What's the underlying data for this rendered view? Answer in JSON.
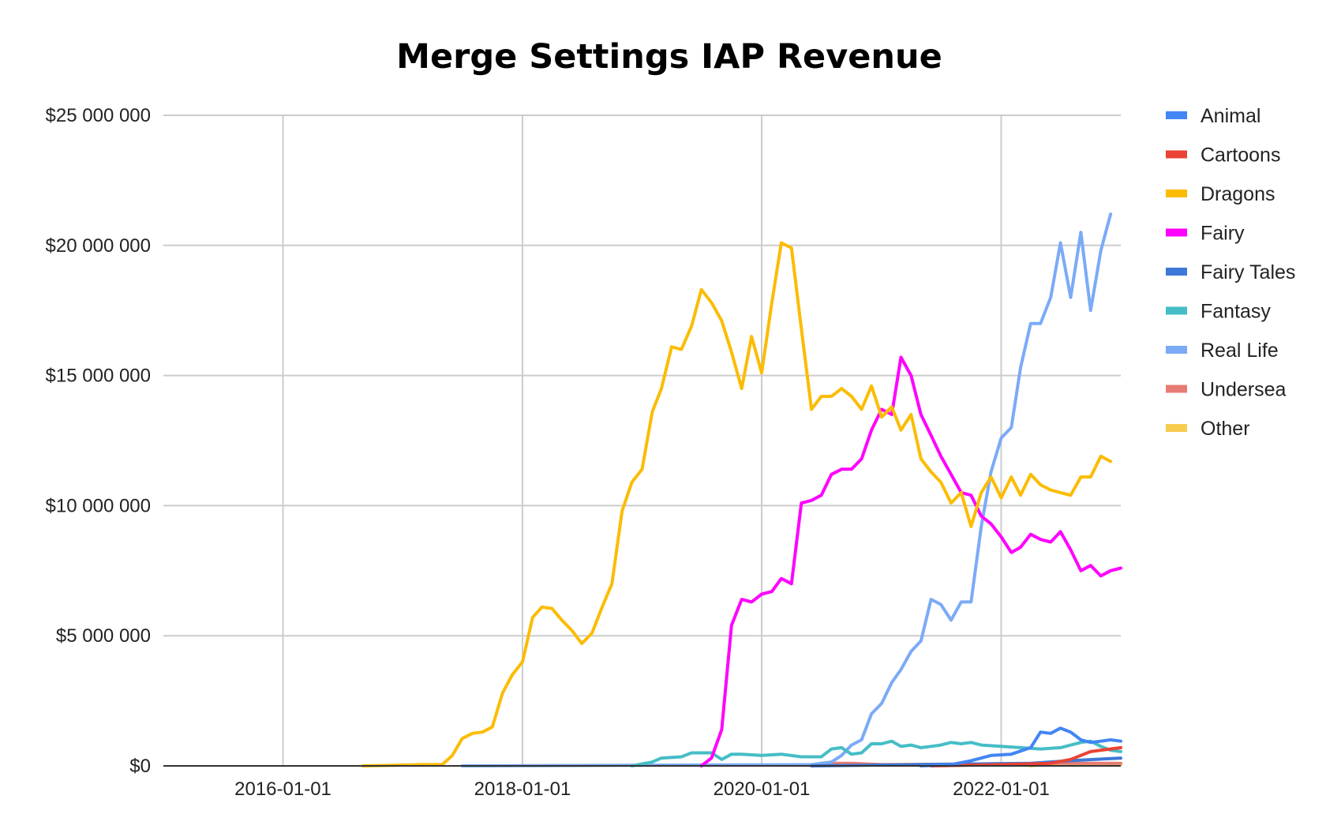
{
  "chart_data": {
    "type": "line",
    "title": "Merge Settings IAP Revenue",
    "xlabel": "",
    "ylabel": "",
    "ylim": [
      0,
      25000000
    ],
    "xlim": [
      "2015-01-01",
      "2023-01-01"
    ],
    "x_ticks": [
      "2016-01-01",
      "2018-01-01",
      "2020-01-01",
      "2022-01-01"
    ],
    "y_ticks": [
      {
        "value": 0,
        "label": "$0"
      },
      {
        "value": 5000000,
        "label": "$5 000 000"
      },
      {
        "value": 10000000,
        "label": "$10 000 000"
      },
      {
        "value": 15000000,
        "label": "$15 000 000"
      },
      {
        "value": 20000000,
        "label": "$20 000 000"
      },
      {
        "value": 25000000,
        "label": "$25 000 000"
      }
    ],
    "grid": true,
    "legend_position": "right",
    "series": [
      {
        "name": "Animal",
        "color": "#4285f4",
        "points": [
          [
            "2021-05-01",
            0
          ],
          [
            "2021-08-01",
            50000
          ],
          [
            "2021-10-01",
            200000
          ],
          [
            "2021-12-01",
            400000
          ],
          [
            "2022-02-01",
            450000
          ],
          [
            "2022-04-01",
            700000
          ],
          [
            "2022-05-01",
            1300000
          ],
          [
            "2022-06-01",
            1250000
          ],
          [
            "2022-07-01",
            1450000
          ],
          [
            "2022-08-01",
            1300000
          ],
          [
            "2022-09-01",
            1000000
          ],
          [
            "2022-10-01",
            900000
          ],
          [
            "2022-11-01",
            950000
          ],
          [
            "2022-12-01",
            1000000
          ],
          [
            "2023-01-01",
            950000
          ]
        ]
      },
      {
        "name": "Cartoons",
        "color": "#ea4335",
        "points": [
          [
            "2021-06-01",
            0
          ],
          [
            "2022-01-01",
            50000
          ],
          [
            "2022-06-01",
            100000
          ],
          [
            "2022-08-01",
            250000
          ],
          [
            "2022-10-01",
            550000
          ],
          [
            "2022-12-01",
            650000
          ],
          [
            "2023-01-01",
            700000
          ]
        ]
      },
      {
        "name": "Dragons",
        "color": "#fbbc04",
        "points": [
          [
            "2016-09-01",
            0
          ],
          [
            "2016-12-01",
            20000
          ],
          [
            "2017-03-01",
            50000
          ],
          [
            "2017-05-01",
            50000
          ],
          [
            "2017-06-01",
            400000
          ],
          [
            "2017-07-01",
            1050000
          ],
          [
            "2017-08-01",
            1250000
          ],
          [
            "2017-09-01",
            1300000
          ],
          [
            "2017-10-01",
            1500000
          ],
          [
            "2017-11-01",
            2800000
          ],
          [
            "2017-12-01",
            3500000
          ],
          [
            "2018-01-01",
            4000000
          ],
          [
            "2018-02-01",
            5700000
          ],
          [
            "2018-03-01",
            6100000
          ],
          [
            "2018-04-01",
            6050000
          ],
          [
            "2018-05-01",
            5600000
          ],
          [
            "2018-06-01",
            5200000
          ],
          [
            "2018-07-01",
            4700000
          ],
          [
            "2018-08-01",
            5100000
          ],
          [
            "2018-09-01",
            6100000
          ],
          [
            "2018-10-01",
            7000000
          ],
          [
            "2018-11-01",
            9800000
          ],
          [
            "2018-12-01",
            10900000
          ],
          [
            "2019-01-01",
            11400000
          ],
          [
            "2019-02-01",
            13600000
          ],
          [
            "2019-03-01",
            14500000
          ],
          [
            "2019-04-01",
            16100000
          ],
          [
            "2019-05-01",
            16000000
          ],
          [
            "2019-06-01",
            16900000
          ],
          [
            "2019-07-01",
            18300000
          ],
          [
            "2019-08-01",
            17800000
          ],
          [
            "2019-09-01",
            17100000
          ],
          [
            "2019-10-01",
            15900000
          ],
          [
            "2019-11-01",
            14500000
          ],
          [
            "2019-12-01",
            16500000
          ],
          [
            "2020-01-01",
            15100000
          ],
          [
            "2020-02-01",
            17800000
          ],
          [
            "2020-03-01",
            20100000
          ],
          [
            "2020-04-01",
            19900000
          ],
          [
            "2020-05-01",
            16800000
          ],
          [
            "2020-06-01",
            13700000
          ],
          [
            "2020-07-01",
            14200000
          ],
          [
            "2020-08-01",
            14200000
          ],
          [
            "2020-09-01",
            14500000
          ],
          [
            "2020-10-01",
            14200000
          ],
          [
            "2020-11-01",
            13700000
          ],
          [
            "2020-12-01",
            14600000
          ],
          [
            "2021-01-01",
            13400000
          ],
          [
            "2021-02-01",
            13800000
          ],
          [
            "2021-03-01",
            12900000
          ],
          [
            "2021-04-01",
            13500000
          ],
          [
            "2021-05-01",
            11800000
          ],
          [
            "2021-06-01",
            11300000
          ],
          [
            "2021-07-01",
            10900000
          ],
          [
            "2021-08-01",
            10100000
          ],
          [
            "2021-09-01",
            10500000
          ],
          [
            "2021-10-01",
            9200000
          ],
          [
            "2021-11-01",
            10500000
          ],
          [
            "2021-12-01",
            11100000
          ],
          [
            "2022-01-01",
            10300000
          ],
          [
            "2022-02-01",
            11100000
          ],
          [
            "2022-03-01",
            10400000
          ],
          [
            "2022-04-01",
            11200000
          ],
          [
            "2022-05-01",
            10800000
          ],
          [
            "2022-06-01",
            10600000
          ],
          [
            "2022-07-01",
            10500000
          ],
          [
            "2022-08-01",
            10400000
          ],
          [
            "2022-09-01",
            11100000
          ],
          [
            "2022-10-01",
            11100000
          ],
          [
            "2022-11-01",
            11900000
          ],
          [
            "2022-12-01",
            11700000
          ]
        ]
      },
      {
        "name": "Fairy",
        "color": "#ff00ff",
        "points": [
          [
            "2019-07-01",
            0
          ],
          [
            "2019-08-01",
            300000
          ],
          [
            "2019-09-01",
            1400000
          ],
          [
            "2019-10-01",
            5400000
          ],
          [
            "2019-11-01",
            6400000
          ],
          [
            "2019-12-01",
            6300000
          ],
          [
            "2020-01-01",
            6600000
          ],
          [
            "2020-02-01",
            6700000
          ],
          [
            "2020-03-01",
            7200000
          ],
          [
            "2020-04-01",
            7000000
          ],
          [
            "2020-05-01",
            10100000
          ],
          [
            "2020-06-01",
            10200000
          ],
          [
            "2020-07-01",
            10400000
          ],
          [
            "2020-08-01",
            11200000
          ],
          [
            "2020-09-01",
            11400000
          ],
          [
            "2020-10-01",
            11400000
          ],
          [
            "2020-11-01",
            11800000
          ],
          [
            "2020-12-01",
            12900000
          ],
          [
            "2021-01-01",
            13700000
          ],
          [
            "2021-02-01",
            13500000
          ],
          [
            "2021-03-01",
            15700000
          ],
          [
            "2021-04-01",
            15000000
          ],
          [
            "2021-05-01",
            13500000
          ],
          [
            "2021-06-01",
            12700000
          ],
          [
            "2021-07-01",
            11900000
          ],
          [
            "2021-08-01",
            11200000
          ],
          [
            "2021-09-01",
            10500000
          ],
          [
            "2021-10-01",
            10400000
          ],
          [
            "2021-11-01",
            9600000
          ],
          [
            "2021-12-01",
            9300000
          ],
          [
            "2022-01-01",
            8800000
          ],
          [
            "2022-02-01",
            8200000
          ],
          [
            "2022-03-01",
            8400000
          ],
          [
            "2022-04-01",
            8900000
          ],
          [
            "2022-05-01",
            8700000
          ],
          [
            "2022-06-01",
            8600000
          ],
          [
            "2022-07-01",
            9000000
          ],
          [
            "2022-08-01",
            8300000
          ],
          [
            "2022-09-01",
            7500000
          ],
          [
            "2022-10-01",
            7700000
          ],
          [
            "2022-11-01",
            7300000
          ],
          [
            "2022-12-01",
            7500000
          ],
          [
            "2023-01-01",
            7600000
          ]
        ]
      },
      {
        "name": "Fairy Tales",
        "color": "#3c78d8",
        "points": [
          [
            "2020-06-01",
            0
          ],
          [
            "2022-04-01",
            100000
          ],
          [
            "2022-08-01",
            200000
          ],
          [
            "2023-01-01",
            300000
          ]
        ]
      },
      {
        "name": "Fantasy",
        "color": "#46bdc6",
        "points": [
          [
            "2018-12-01",
            0
          ],
          [
            "2019-02-01",
            150000
          ],
          [
            "2019-03-01",
            300000
          ],
          [
            "2019-05-01",
            350000
          ],
          [
            "2019-06-01",
            500000
          ],
          [
            "2019-07-01",
            500000
          ],
          [
            "2019-08-01",
            500000
          ],
          [
            "2019-09-01",
            250000
          ],
          [
            "2019-10-01",
            450000
          ],
          [
            "2019-11-01",
            450000
          ],
          [
            "2020-01-01",
            400000
          ],
          [
            "2020-03-01",
            450000
          ],
          [
            "2020-05-01",
            350000
          ],
          [
            "2020-07-01",
            350000
          ],
          [
            "2020-08-01",
            650000
          ],
          [
            "2020-09-01",
            700000
          ],
          [
            "2020-10-01",
            450000
          ],
          [
            "2020-11-01",
            500000
          ],
          [
            "2020-12-01",
            850000
          ],
          [
            "2021-01-01",
            850000
          ],
          [
            "2021-02-01",
            950000
          ],
          [
            "2021-03-01",
            750000
          ],
          [
            "2021-04-01",
            800000
          ],
          [
            "2021-05-01",
            700000
          ],
          [
            "2021-06-01",
            750000
          ],
          [
            "2021-07-01",
            800000
          ],
          [
            "2021-08-01",
            900000
          ],
          [
            "2021-09-01",
            850000
          ],
          [
            "2021-10-01",
            900000
          ],
          [
            "2021-11-01",
            800000
          ],
          [
            "2022-01-01",
            750000
          ],
          [
            "2022-03-01",
            700000
          ],
          [
            "2022-05-01",
            650000
          ],
          [
            "2022-07-01",
            700000
          ],
          [
            "2022-09-01",
            900000
          ],
          [
            "2022-10-01",
            950000
          ],
          [
            "2022-11-01",
            750000
          ],
          [
            "2022-12-01",
            600000
          ],
          [
            "2023-01-01",
            550000
          ]
        ]
      },
      {
        "name": "Real Life",
        "color": "#7baaf7",
        "points": [
          [
            "2017-07-01",
            0
          ],
          [
            "2020-06-01",
            50000
          ],
          [
            "2020-08-01",
            150000
          ],
          [
            "2020-09-01",
            400000
          ],
          [
            "2020-10-01",
            800000
          ],
          [
            "2020-11-01",
            1000000
          ],
          [
            "2020-12-01",
            2000000
          ],
          [
            "2021-01-01",
            2400000
          ],
          [
            "2021-02-01",
            3200000
          ],
          [
            "2021-03-01",
            3700000
          ],
          [
            "2021-04-01",
            4400000
          ],
          [
            "2021-05-01",
            4800000
          ],
          [
            "2021-06-01",
            6400000
          ],
          [
            "2021-07-01",
            6200000
          ],
          [
            "2021-08-01",
            5600000
          ],
          [
            "2021-09-01",
            6300000
          ],
          [
            "2021-10-01",
            6300000
          ],
          [
            "2021-11-01",
            9200000
          ],
          [
            "2021-12-01",
            11300000
          ],
          [
            "2022-01-01",
            12600000
          ],
          [
            "2022-02-01",
            13000000
          ],
          [
            "2022-03-01",
            15300000
          ],
          [
            "2022-04-01",
            17000000
          ],
          [
            "2022-05-01",
            17000000
          ],
          [
            "2022-06-01",
            18000000
          ],
          [
            "2022-07-01",
            20100000
          ],
          [
            "2022-08-01",
            18000000
          ],
          [
            "2022-09-01",
            20500000
          ],
          [
            "2022-10-01",
            17500000
          ],
          [
            "2022-11-01",
            19800000
          ],
          [
            "2022-12-01",
            21200000
          ]
        ]
      },
      {
        "name": "Undersea",
        "color": "#e67c73",
        "points": [
          [
            "2020-06-01",
            0
          ],
          [
            "2020-07-01",
            100000
          ],
          [
            "2020-10-01",
            100000
          ],
          [
            "2021-01-01",
            50000
          ],
          [
            "2022-01-01",
            80000
          ],
          [
            "2022-06-01",
            100000
          ],
          [
            "2023-01-01",
            100000
          ]
        ]
      },
      {
        "name": "Other",
        "color": "#f7cb4d",
        "points": [
          [
            "2022-04-01",
            0
          ],
          [
            "2022-05-01",
            50000
          ],
          [
            "2023-01-01",
            50000
          ]
        ]
      }
    ]
  }
}
